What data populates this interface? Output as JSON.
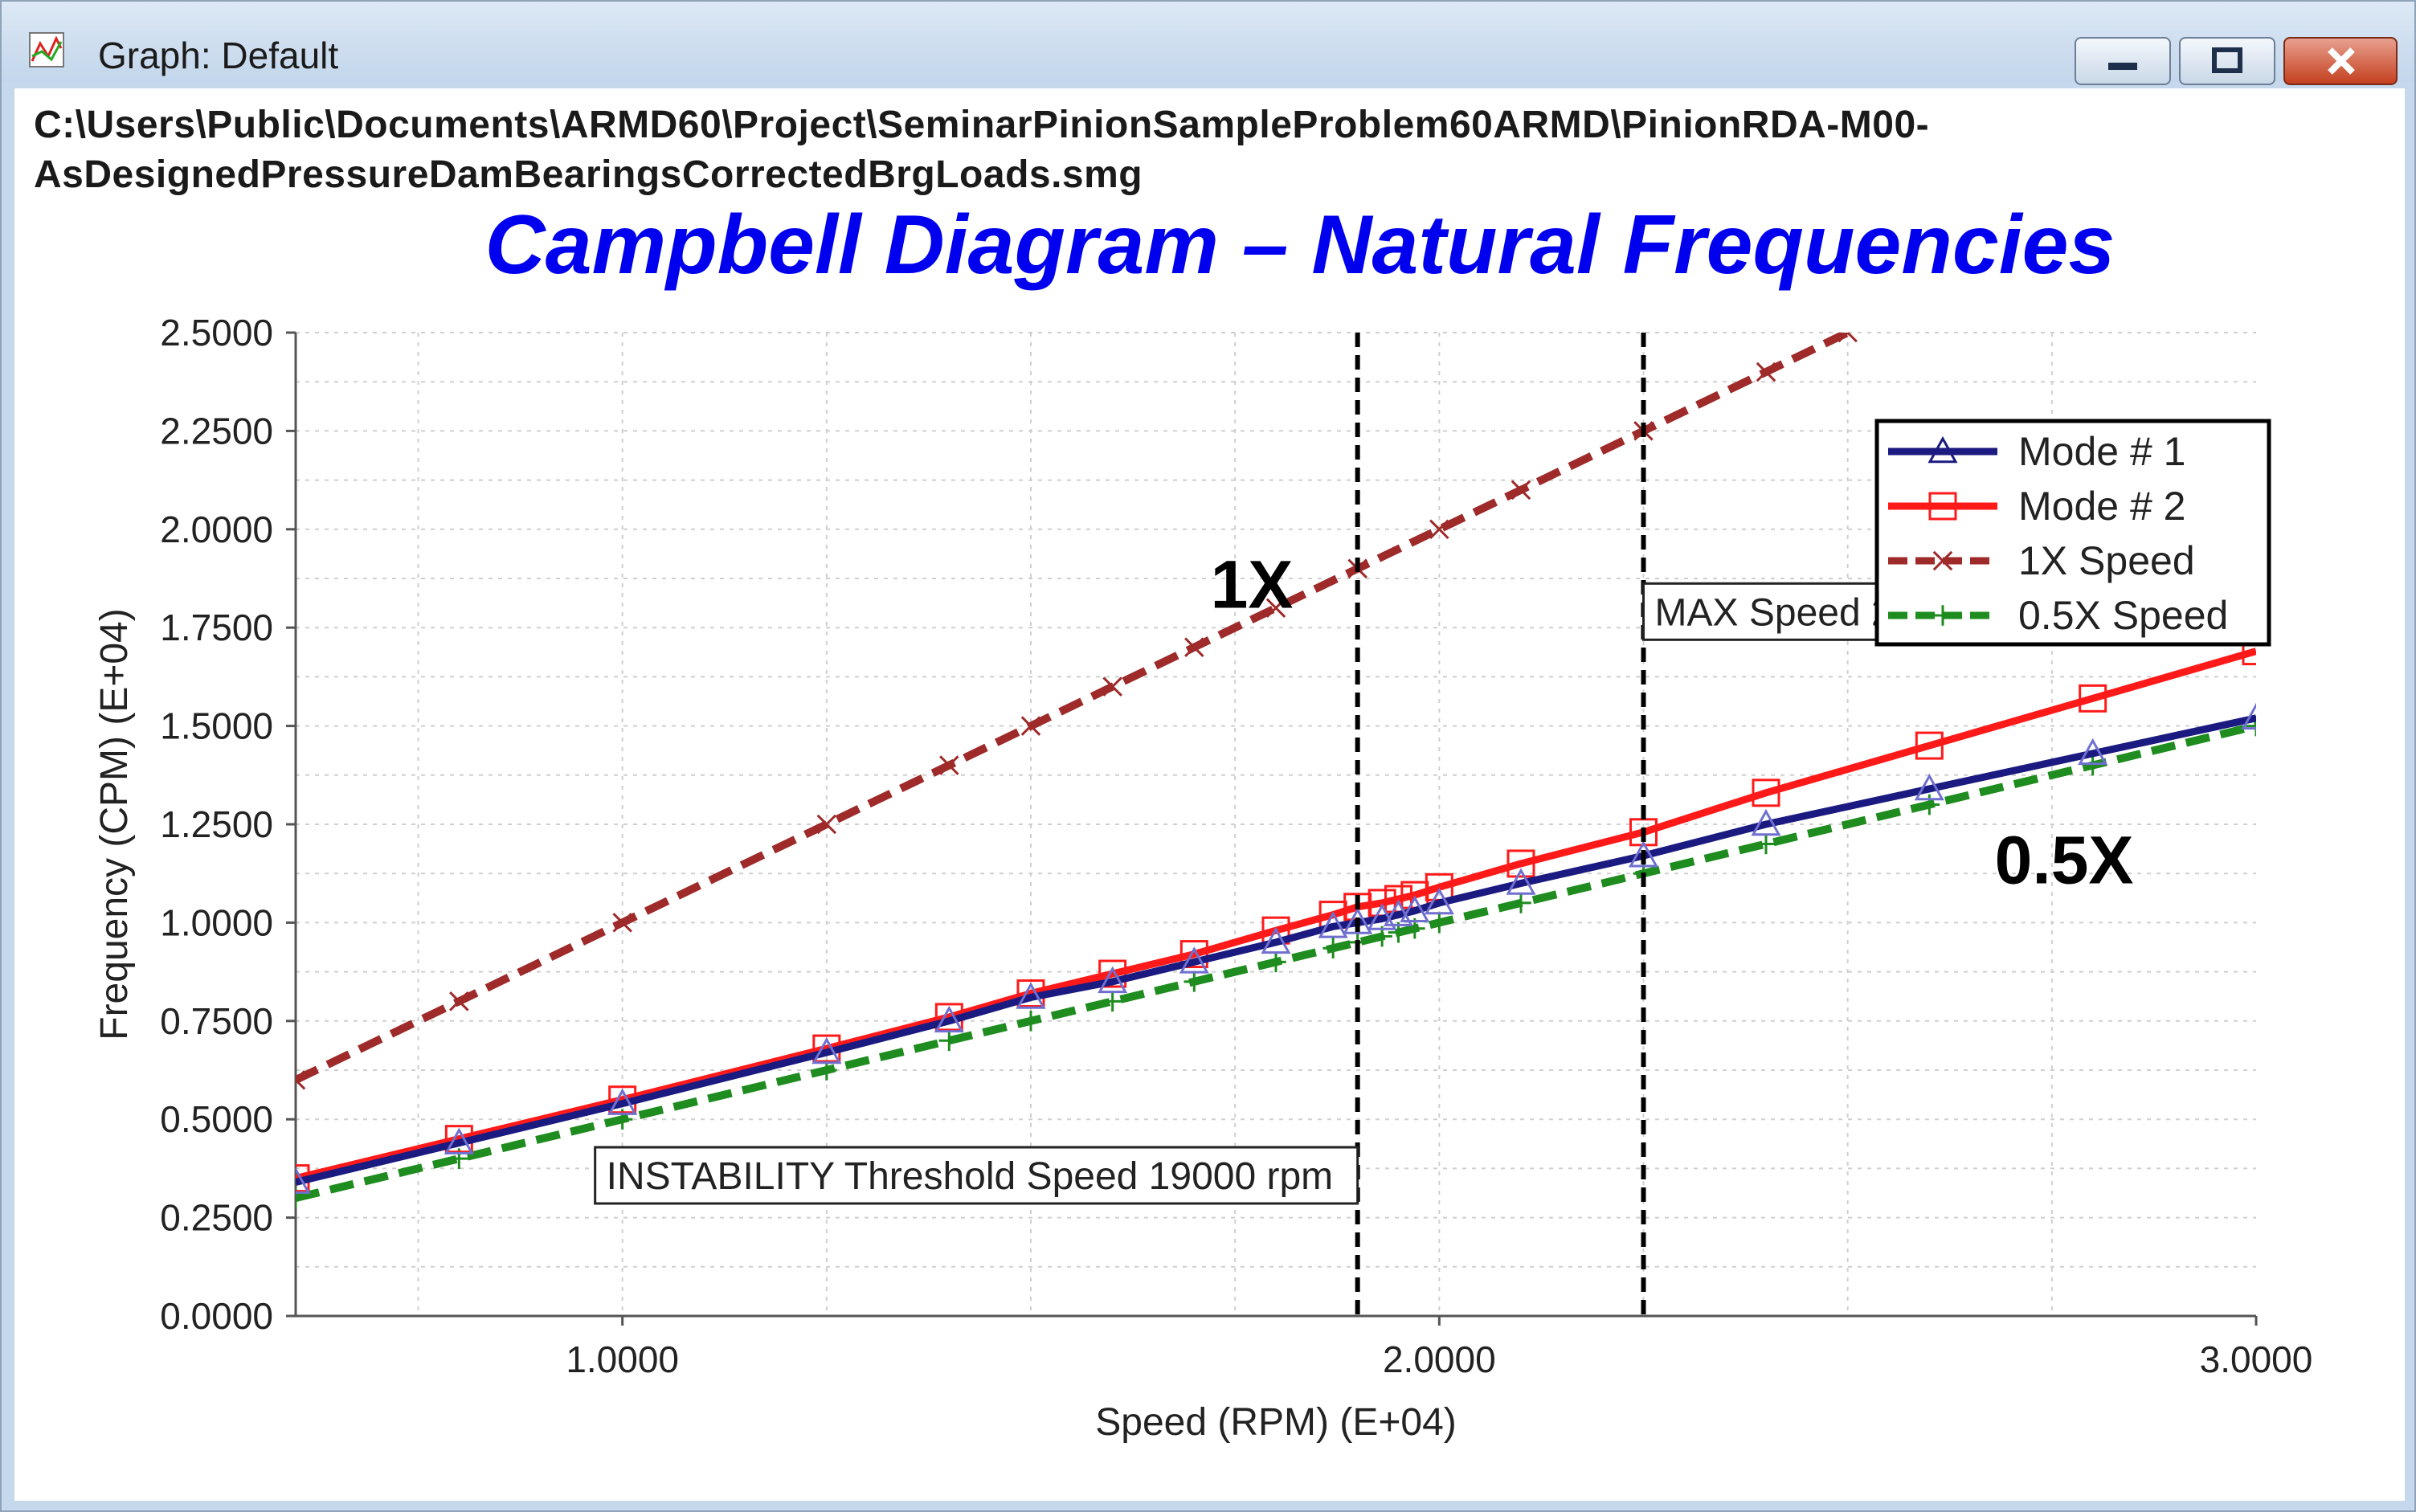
{
  "window": {
    "title": "Graph: Default",
    "path_line_1": "C:\\Users\\Public\\Documents\\ARMD60\\Project\\SeminarPinionSampleProblem60ARMD\\PinionRDA-M00-",
    "path_line_2": "AsDesignedPressureDamBearingsCorrectedBrgLoads.smg",
    "minimize_icon": "minimize-icon",
    "maximize_icon": "maximize-icon",
    "close_icon": "close-icon"
  },
  "chart_data": {
    "type": "line",
    "title": "Campbell Diagram – Natural Frequencies",
    "xlabel": "Speed (RPM) (E+04)",
    "ylabel": "Frequency (CPM) (E+04)",
    "xlim": [
      0.6,
      3.0
    ],
    "ylim": [
      0.0,
      2.5
    ],
    "xticks": [
      1.0,
      2.0,
      3.0
    ],
    "xtick_labels": [
      "1.0000",
      "2.0000",
      "3.0000"
    ],
    "yticks": [
      0.0,
      0.25,
      0.5,
      0.75,
      1.0,
      1.25,
      1.5,
      1.75,
      2.0,
      2.25,
      2.5
    ],
    "ytick_labels": [
      "0.0000",
      "0.2500",
      "0.5000",
      "0.7500",
      "1.0000",
      "1.2500",
      "1.5000",
      "1.7500",
      "2.0000",
      "2.2500",
      "2.5000"
    ],
    "grid": true,
    "legend_position": "top-right",
    "series": [
      {
        "name": "Mode # 1",
        "color": "#1a1a80",
        "marker": "triangle",
        "dashed": false,
        "x": [
          0.6,
          0.8,
          1.0,
          1.25,
          1.4,
          1.5,
          1.6,
          1.7,
          1.8,
          1.87,
          1.9,
          1.93,
          1.95,
          1.97,
          2.0,
          2.1,
          2.25,
          2.4,
          2.6,
          2.8,
          3.0
        ],
        "y": [
          0.34,
          0.44,
          0.54,
          0.67,
          0.75,
          0.81,
          0.85,
          0.9,
          0.95,
          0.99,
          1.0,
          1.01,
          1.02,
          1.03,
          1.05,
          1.1,
          1.17,
          1.25,
          1.34,
          1.43,
          1.52
        ]
      },
      {
        "name": "Mode # 2",
        "color": "#ff1a1a",
        "marker": "square",
        "dashed": false,
        "x": [
          0.6,
          0.8,
          1.0,
          1.25,
          1.4,
          1.5,
          1.6,
          1.7,
          1.8,
          1.87,
          1.9,
          1.93,
          1.95,
          1.97,
          2.0,
          2.1,
          2.25,
          2.4,
          2.6,
          2.8,
          3.0
        ],
        "y": [
          0.35,
          0.45,
          0.55,
          0.68,
          0.76,
          0.82,
          0.87,
          0.92,
          0.98,
          1.02,
          1.04,
          1.05,
          1.06,
          1.07,
          1.09,
          1.15,
          1.23,
          1.33,
          1.45,
          1.57,
          1.69
        ]
      },
      {
        "name": "1X Speed",
        "color": "#9e2a2a",
        "marker": "x",
        "dashed": true,
        "x": [
          0.6,
          0.8,
          1.0,
          1.25,
          1.4,
          1.5,
          1.6,
          1.7,
          1.8,
          1.9,
          2.0,
          2.1,
          2.25,
          2.4,
          2.5
        ],
        "y": [
          0.6,
          0.8,
          1.0,
          1.25,
          1.4,
          1.5,
          1.6,
          1.7,
          1.8,
          1.9,
          2.0,
          2.1,
          2.25,
          2.4,
          2.5
        ]
      },
      {
        "name": "0.5X Speed",
        "color": "#1e8c1e",
        "marker": "plus",
        "dashed": true,
        "x": [
          0.6,
          0.8,
          1.0,
          1.25,
          1.4,
          1.5,
          1.6,
          1.7,
          1.8,
          1.87,
          1.9,
          1.93,
          1.95,
          1.97,
          2.0,
          2.1,
          2.25,
          2.4,
          2.6,
          2.8,
          3.0
        ],
        "y": [
          0.3,
          0.4,
          0.5,
          0.625,
          0.7,
          0.75,
          0.8,
          0.85,
          0.9,
          0.935,
          0.95,
          0.965,
          0.975,
          0.985,
          1.0,
          1.05,
          1.125,
          1.2,
          1.3,
          1.4,
          1.5
        ]
      }
    ],
    "vertical_lines": [
      {
        "x": 1.9,
        "label": "INSTABILITY Threshold Speed 19000 rpm"
      },
      {
        "x": 2.25,
        "label": "MAX Speed 22500 rpm"
      }
    ],
    "annotations": [
      {
        "text": "1X",
        "x": 1.72,
        "y": 1.8
      },
      {
        "text": "0.5X",
        "x": 2.68,
        "y": 1.1
      }
    ]
  }
}
